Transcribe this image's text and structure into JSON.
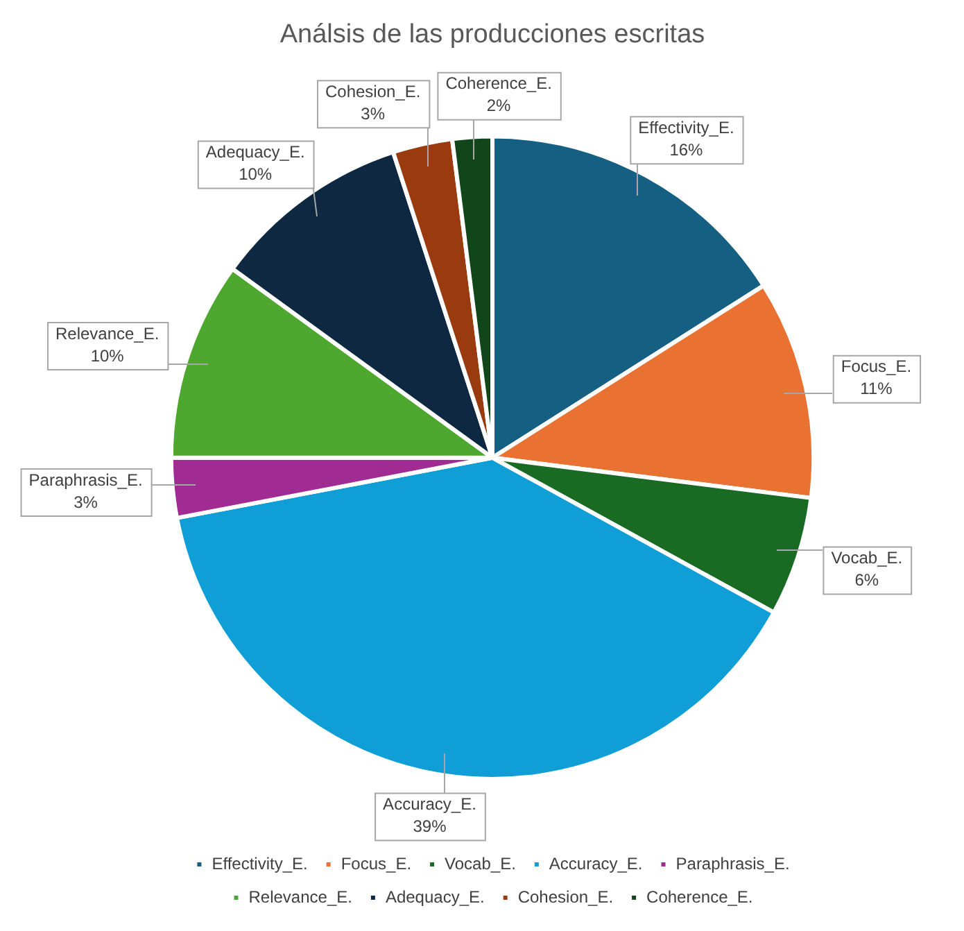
{
  "chart_data": {
    "type": "pie",
    "title": "Análsis de las producciones escritas",
    "categories": [
      "Effectivity_E.",
      "Focus_E.",
      "Vocab_E.",
      "Accuracy_E.",
      "Paraphrasis_E.",
      "Relevance_E.",
      "Adequacy_E.",
      "Cohesion_E.",
      "Coherence_E."
    ],
    "values": [
      16,
      11,
      6,
      39,
      3,
      10,
      10,
      3,
      2
    ],
    "colors": [
      "#156082",
      "#e97132",
      "#196b24",
      "#0f9ed5",
      "#a02b93",
      "#4ea72e",
      "#0e2841",
      "#9a3a0f",
      "#10461a"
    ],
    "value_labels": [
      "16%",
      "11%",
      "6%",
      "39%",
      "3%",
      "10%",
      "10%",
      "3%",
      "2%"
    ],
    "legend": "bottom"
  }
}
